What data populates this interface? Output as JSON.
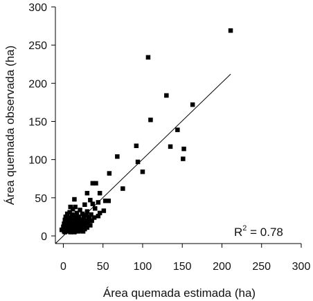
{
  "chart_data": {
    "type": "scatter",
    "title": "",
    "xlabel": "Área quemada estimada (ha)",
    "ylabel": "Área quemada observada (ha)",
    "xlim": [
      -10,
      300
    ],
    "ylim": [
      -10,
      300
    ],
    "xticks": [
      0,
      50,
      100,
      150,
      200,
      250,
      300
    ],
    "yticks": [
      0,
      50,
      100,
      150,
      200,
      250,
      300
    ],
    "xtick_labels": [
      "0",
      "50",
      "100",
      "150",
      "200",
      "250",
      "300"
    ],
    "ytick_labels": [
      "0",
      "50",
      "100",
      "150",
      "200",
      "250",
      "300"
    ],
    "grid": false,
    "annotation": {
      "r2_base": "R",
      "r2_sup": "2",
      "r2_rest": " = 0.78"
    },
    "fit_line": {
      "x": [
        -10,
        211
      ],
      "y": [
        -10,
        212
      ]
    },
    "points": [
      {
        "x": 211,
        "y": 269
      },
      {
        "x": 107,
        "y": 234
      },
      {
        "x": 130,
        "y": 184
      },
      {
        "x": 163,
        "y": 172
      },
      {
        "x": 110,
        "y": 152
      },
      {
        "x": 144,
        "y": 139
      },
      {
        "x": 92,
        "y": 118
      },
      {
        "x": 135,
        "y": 117
      },
      {
        "x": 152,
        "y": 114
      },
      {
        "x": 68,
        "y": 104
      },
      {
        "x": 151,
        "y": 101
      },
      {
        "x": 94,
        "y": 97
      },
      {
        "x": 100,
        "y": 84
      },
      {
        "x": 58,
        "y": 82
      },
      {
        "x": 37,
        "y": 69
      },
      {
        "x": 41,
        "y": 69
      },
      {
        "x": 75,
        "y": 62
      },
      {
        "x": 30,
        "y": 56
      },
      {
        "x": 46,
        "y": 56
      },
      {
        "x": 14,
        "y": 48
      },
      {
        "x": 34,
        "y": 47
      },
      {
        "x": 53,
        "y": 46
      },
      {
        "x": 57,
        "y": 46
      },
      {
        "x": 44,
        "y": 44
      },
      {
        "x": 37,
        "y": 42
      },
      {
        "x": 27,
        "y": 41
      },
      {
        "x": 9,
        "y": 38
      },
      {
        "x": 15,
        "y": 38
      },
      {
        "x": 40,
        "y": 36
      },
      {
        "x": 12,
        "y": 35
      },
      {
        "x": 21,
        "y": 34
      },
      {
        "x": 51,
        "y": 33
      },
      {
        "x": 30,
        "y": 32
      },
      {
        "x": 8,
        "y": 31
      },
      {
        "x": 17,
        "y": 30
      },
      {
        "x": 46,
        "y": 30
      },
      {
        "x": 5,
        "y": 29
      },
      {
        "x": 24,
        "y": 29
      },
      {
        "x": 11,
        "y": 28
      },
      {
        "x": 35,
        "y": 28
      },
      {
        "x": 14,
        "y": 27
      },
      {
        "x": 29,
        "y": 27
      },
      {
        "x": 44,
        "y": 26
      },
      {
        "x": 3,
        "y": 25
      },
      {
        "x": 19,
        "y": 25
      },
      {
        "x": 9,
        "y": 24
      },
      {
        "x": 26,
        "y": 24
      },
      {
        "x": 39,
        "y": 24
      },
      {
        "x": 6,
        "y": 23
      },
      {
        "x": 15,
        "y": 22
      },
      {
        "x": 32,
        "y": 22
      },
      {
        "x": 2,
        "y": 21
      },
      {
        "x": 12,
        "y": 21
      },
      {
        "x": 22,
        "y": 21
      },
      {
        "x": 28,
        "y": 20
      },
      {
        "x": 36,
        "y": 20
      },
      {
        "x": 7,
        "y": 19
      },
      {
        "x": 17,
        "y": 19
      },
      {
        "x": 4,
        "y": 18
      },
      {
        "x": 24,
        "y": 18
      },
      {
        "x": 31,
        "y": 17
      },
      {
        "x": 10,
        "y": 17
      },
      {
        "x": 1,
        "y": 16
      },
      {
        "x": 19,
        "y": 16
      },
      {
        "x": 14,
        "y": 15
      },
      {
        "x": 27,
        "y": 15
      },
      {
        "x": 34,
        "y": 14
      },
      {
        "x": 5,
        "y": 14
      },
      {
        "x": 21,
        "y": 14
      },
      {
        "x": 9,
        "y": 13
      },
      {
        "x": 16,
        "y": 13
      },
      {
        "x": 25,
        "y": 12
      },
      {
        "x": 0,
        "y": 12
      },
      {
        "x": 12,
        "y": 12
      },
      {
        "x": 30,
        "y": 11
      },
      {
        "x": 6,
        "y": 11
      },
      {
        "x": 18,
        "y": 11
      },
      {
        "x": 3,
        "y": 10
      },
      {
        "x": 23,
        "y": 10
      },
      {
        "x": 13,
        "y": 10
      },
      {
        "x": 8,
        "y": 9
      },
      {
        "x": 20,
        "y": 9
      },
      {
        "x": 27,
        "y": 9
      },
      {
        "x": -1,
        "y": 8
      },
      {
        "x": 15,
        "y": 8
      },
      {
        "x": 10,
        "y": 8
      },
      {
        "x": 4,
        "y": 7
      },
      {
        "x": 22,
        "y": 7
      },
      {
        "x": 17,
        "y": 7
      },
      {
        "x": 1,
        "y": 6
      },
      {
        "x": 7,
        "y": 6
      },
      {
        "x": 12,
        "y": 6
      },
      {
        "x": 19,
        "y": 6
      },
      {
        "x": 25,
        "y": 6
      },
      {
        "x": 2,
        "y": 5
      },
      {
        "x": 9,
        "y": 5
      },
      {
        "x": 14,
        "y": 5
      },
      {
        "x": -2,
        "y": 8
      },
      {
        "x": 5,
        "y": 9
      },
      {
        "x": 11,
        "y": 14
      },
      {
        "x": 18,
        "y": 18
      },
      {
        "x": 26,
        "y": 22
      },
      {
        "x": 33,
        "y": 25
      },
      {
        "x": 6,
        "y": 16
      },
      {
        "x": 13,
        "y": 19
      },
      {
        "x": 20,
        "y": 23
      },
      {
        "x": 16,
        "y": 26
      }
    ]
  }
}
